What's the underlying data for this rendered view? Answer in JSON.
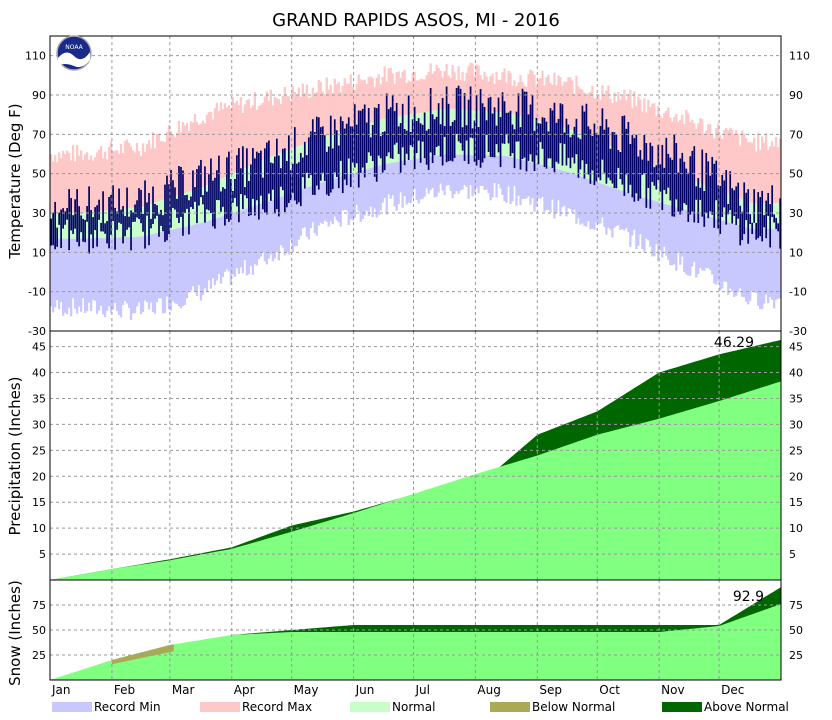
{
  "chart_data": {
    "type": "area",
    "title": "GRAND RAPIDS ASOS, MI - 2016",
    "logo_text": "NOAA",
    "months": [
      "Jan",
      "Feb",
      "Mar",
      "Apr",
      "May",
      "Jun",
      "Jul",
      "Aug",
      "Sep",
      "Oct",
      "Nov",
      "Dec"
    ],
    "legend": [
      {
        "label": "Record Min",
        "color": "#c8c8ff"
      },
      {
        "label": "Record Max",
        "color": "#ffc8c8"
      },
      {
        "label": "Normal",
        "color": "#c8ffc8"
      },
      {
        "label": "Below Normal",
        "color": "#aaaa55"
      },
      {
        "label": "Above Normal",
        "color": "#006600"
      }
    ],
    "colors": {
      "record_min": "#c8c8ff",
      "record_max": "#ffc8c8",
      "normal": "#c8ffc8",
      "actual_temp": "#000066",
      "precip_normal": "#80ff80",
      "above_normal": "#006600",
      "below_normal": "#aaaa55",
      "grid": "#999999"
    },
    "temperature": {
      "ylabel": "Temperature (Deg F)",
      "ylim": [
        -30,
        120
      ],
      "ticks": [
        -30,
        -10,
        10,
        30,
        50,
        70,
        90,
        110
      ],
      "monthly_actual_high": [
        33,
        35,
        48,
        56,
        70,
        80,
        84,
        84,
        78,
        68,
        56,
        35
      ],
      "monthly_actual_low": [
        18,
        20,
        30,
        34,
        46,
        56,
        62,
        62,
        56,
        44,
        34,
        20
      ],
      "normal_high": [
        30,
        33,
        43,
        57,
        69,
        78,
        83,
        81,
        73,
        60,
        47,
        35
      ],
      "normal_low": [
        17,
        18,
        25,
        35,
        46,
        55,
        60,
        59,
        51,
        40,
        31,
        22
      ],
      "record_max": [
        60,
        64,
        80,
        88,
        94,
        100,
        103,
        100,
        96,
        88,
        77,
        66
      ],
      "record_min": [
        -18,
        -20,
        -10,
        6,
        24,
        34,
        42,
        40,
        30,
        18,
        2,
        -14
      ]
    },
    "precipitation": {
      "ylabel": "Precipitation (Inches)",
      "ylim": [
        0,
        48
      ],
      "ticks": [
        5,
        10,
        15,
        20,
        25,
        30,
        35,
        40,
        45
      ],
      "total_label": "46.29",
      "month_end_actual": [
        2.1,
        4.0,
        6.3,
        10.5,
        13.2,
        16.5,
        17.8,
        28.0,
        32.5,
        40.0,
        43.5,
        46.29
      ],
      "month_end_normal": [
        2.1,
        3.8,
        6.0,
        9.3,
        12.9,
        16.6,
        20.4,
        24.0,
        28.0,
        31.1,
        34.5,
        38.3
      ]
    },
    "snow": {
      "ylabel": "Snow (Inches)",
      "ylim": [
        0,
        100
      ],
      "ticks": [
        25,
        50,
        75
      ],
      "total_label": "92.9",
      "month_end_actual": [
        17,
        30,
        45,
        50,
        55,
        55,
        55,
        55,
        55,
        55,
        55,
        92.9
      ],
      "month_end_normal": [
        20,
        35,
        45,
        48,
        48,
        48,
        48,
        48,
        48,
        48,
        54,
        76
      ]
    }
  }
}
